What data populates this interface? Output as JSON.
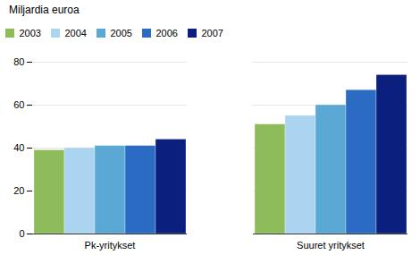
{
  "chart_data": {
    "type": "bar",
    "title": "Miljardia euroa",
    "categories": [
      "Pk-yritykset",
      "Suuret yritykset"
    ],
    "series": [
      {
        "name": "2003",
        "color": "#8fbc5a",
        "values": [
          39,
          51
        ]
      },
      {
        "name": "2004",
        "color": "#aad4f0",
        "values": [
          40,
          55
        ]
      },
      {
        "name": "2005",
        "color": "#5ba8d4",
        "values": [
          41,
          60
        ]
      },
      {
        "name": "2006",
        "color": "#2b6bc4",
        "values": [
          41,
          67
        ]
      },
      {
        "name": "2007",
        "color": "#0a1f7e",
        "values": [
          44,
          74
        ]
      }
    ],
    "ylim": [
      0,
      80
    ],
    "yticks": [
      0,
      20,
      40,
      60,
      80
    ],
    "grid": true,
    "legend": "upper left"
  }
}
